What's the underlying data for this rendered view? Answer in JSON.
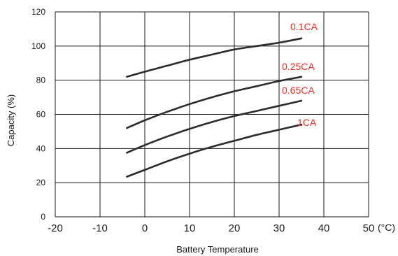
{
  "chart_data": {
    "type": "line",
    "xlabel": "Battery Temperature",
    "ylabel": "Capacity (%)",
    "x_unit": "(°C)",
    "xlim": [
      -20,
      50
    ],
    "ylim": [
      0,
      120
    ],
    "x_ticks": [
      -20,
      -10,
      0,
      10,
      20,
      30,
      40,
      50
    ],
    "y_ticks": [
      0,
      20,
      40,
      60,
      80,
      100,
      120
    ],
    "grid": true,
    "colors": {
      "line": "#2b2b2b",
      "label": "#e8322b",
      "grid": "#1a1a1a"
    },
    "series": [
      {
        "name": "0.1CA",
        "x": [
          -4,
          0,
          5,
          10,
          15,
          20,
          25,
          30,
          35
        ],
        "y": [
          82,
          85,
          88.5,
          92,
          95,
          98,
          100,
          102,
          104.5
        ]
      },
      {
        "name": "0.25CA",
        "x": [
          -4,
          0,
          5,
          10,
          15,
          20,
          25,
          30,
          35
        ],
        "y": [
          52,
          56.5,
          61.5,
          66,
          70,
          73.5,
          76.5,
          79.5,
          82
        ]
      },
      {
        "name": "0.65CA",
        "x": [
          -4,
          0,
          5,
          10,
          15,
          20,
          25,
          30,
          35
        ],
        "y": [
          37.5,
          42,
          47,
          51.5,
          55.5,
          59,
          62,
          65,
          68
        ]
      },
      {
        "name": "1CA",
        "x": [
          -4,
          0,
          5,
          10,
          15,
          20,
          25,
          30,
          35
        ],
        "y": [
          23.5,
          27.5,
          32.5,
          37,
          41,
          44.5,
          48,
          51,
          54
        ]
      }
    ]
  }
}
